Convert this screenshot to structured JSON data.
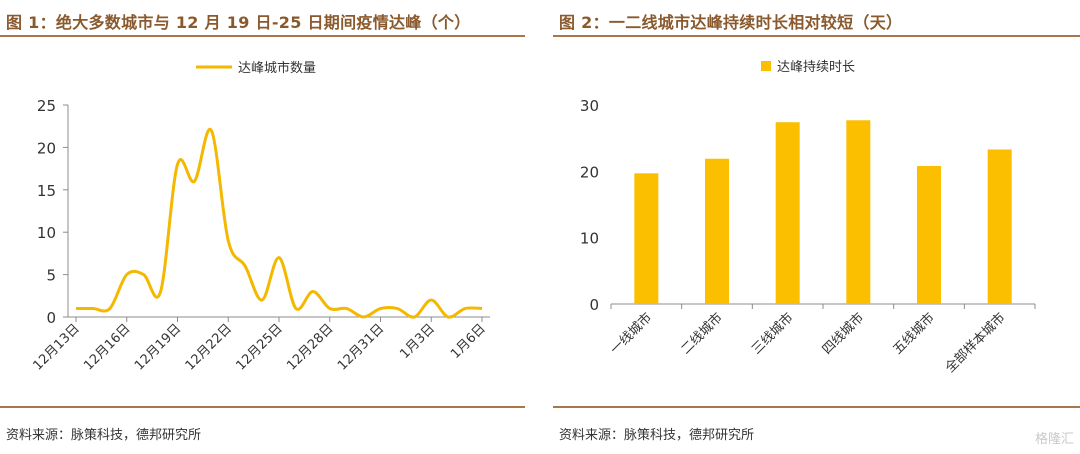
{
  "panel1": {
    "title": "图 1：绝大多数城市与 12 月 19 日-25 日期间疫情达峰（个）",
    "source": "资料来源：脉策科技，德邦研究所"
  },
  "panel2": {
    "title": "图 2：一二线城市达峰持续时长相对较短（天）",
    "source": "资料来源：脉策科技，德邦研究所"
  },
  "watermark": "格隆汇",
  "chart_data": [
    {
      "type": "line",
      "legend": "达峰城市数量",
      "legend_position": "top-center",
      "color": "#f5b800",
      "x": [
        "12月13日",
        "12月14日",
        "12月15日",
        "12月16日",
        "12月17日",
        "12月18日",
        "12月19日",
        "12月20日",
        "12月21日",
        "12月22日",
        "12月23日",
        "12月24日",
        "12月25日",
        "12月26日",
        "12月27日",
        "12月28日",
        "12月29日",
        "12月30日",
        "12月31日",
        "1月1日",
        "1月2日",
        "1月3日",
        "1月4日",
        "1月5日",
        "1月6日"
      ],
      "y": [
        1,
        1,
        1,
        5,
        5,
        3,
        18,
        16,
        22,
        9,
        6,
        2,
        7,
        1,
        3,
        1,
        1,
        0,
        1,
        1,
        0,
        2,
        0,
        1,
        1
      ],
      "tick_labels": [
        "12月13日",
        "12月16日",
        "12月19日",
        "12月22日",
        "12月25日",
        "12月28日",
        "12月31日",
        "1月3日",
        "1月6日"
      ],
      "tick_indices": [
        0,
        3,
        6,
        9,
        12,
        15,
        18,
        21,
        24
      ],
      "yticks": [
        0,
        5,
        10,
        15,
        20,
        25
      ],
      "ylim": [
        0,
        25
      ],
      "grid": false
    },
    {
      "type": "bar",
      "legend": "达峰持续时长",
      "legend_position": "top-center",
      "color": "#fbbf00",
      "categories": [
        "一线城市",
        "二线城市",
        "三线城市",
        "四线城市",
        "五线城市",
        "全部样本城市"
      ],
      "values": [
        19.7,
        21.9,
        27.4,
        27.7,
        20.8,
        23.3
      ],
      "yticks": [
        0,
        10,
        20,
        30
      ],
      "ylim": [
        0,
        30
      ],
      "grid": false
    }
  ]
}
